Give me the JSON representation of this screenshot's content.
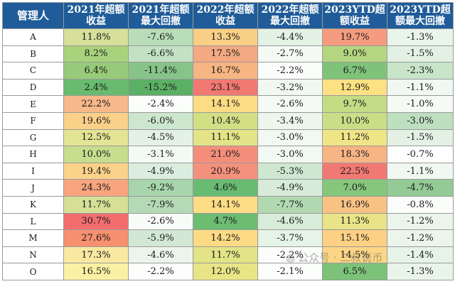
{
  "table": {
    "headers": [
      {
        "line1": "管理人",
        "line2": ""
      },
      {
        "line1": "2021年超额",
        "line2": "收益"
      },
      {
        "line1": "2021年超额",
        "line2": "最大回撤"
      },
      {
        "line1": "2022年超额",
        "line2": "收益"
      },
      {
        "line1": "2022年超额",
        "line2": "最大回撤"
      },
      {
        "line1": "2023YTD超",
        "line2": "额收益"
      },
      {
        "line1": "2023YTD超",
        "line2": "额最大回撤"
      }
    ],
    "rows": [
      {
        "manager": "A",
        "v": [
          "11.8%",
          "-7.6%",
          "13.3%",
          "-4.4%",
          "19.7%",
          "-1.3%"
        ]
      },
      {
        "manager": "B",
        "v": [
          "8.2%",
          "-6.6%",
          "17.5%",
          "-2.7%",
          "9.0%",
          "-1.5%"
        ]
      },
      {
        "manager": "C",
        "v": [
          "6.4%",
          "-11.4%",
          "16.7%",
          "-2.2%",
          "6.7%",
          "-2.3%"
        ]
      },
      {
        "manager": "D",
        "v": [
          "2.4%",
          "-15.2%",
          "23.1%",
          "-3.2%",
          "12.9%",
          "-1.1%"
        ]
      },
      {
        "manager": "E",
        "v": [
          "22.2%",
          "-2.4%",
          "14.1%",
          "-2.6%",
          "9.7%",
          "-1.0%"
        ]
      },
      {
        "manager": "F",
        "v": [
          "19.6%",
          "-6.0%",
          "10.4%",
          "-3.4%",
          "10.0%",
          "-3.0%"
        ]
      },
      {
        "manager": "G",
        "v": [
          "12.5%",
          "-4.5%",
          "11.1%",
          "-3.0%",
          "11.2%",
          "-1.5%"
        ]
      },
      {
        "manager": "H",
        "v": [
          "10.0%",
          "-3.1%",
          "21.0%",
          "-3.0%",
          "18.3%",
          "-0.7%"
        ]
      },
      {
        "manager": "I",
        "v": [
          "19.4%",
          "-4.9%",
          "20.9%",
          "-5.3%",
          "22.5%",
          "-1.1%"
        ]
      },
      {
        "manager": "J",
        "v": [
          "24.3%",
          "-9.2%",
          "4.6%",
          "-4.9%",
          "7.0%",
          "-4.7%"
        ]
      },
      {
        "manager": "K",
        "v": [
          "11.7%",
          "-7.9%",
          "14.1%",
          "-7.7%",
          "16.9%",
          "-0.8%"
        ]
      },
      {
        "manager": "L",
        "v": [
          "30.7%",
          "-2.6%",
          "4.7%",
          "-4.6%",
          "11.3%",
          "-1.2%"
        ]
      },
      {
        "manager": "M",
        "v": [
          "27.6%",
          "-5.9%",
          "14.2%",
          "-3.7%",
          "15.1%",
          "-1.2%"
        ]
      },
      {
        "manager": "N",
        "v": [
          "17.3%",
          "-4.6%",
          "11.7%",
          "-2.2%",
          "14.5%",
          "-1.4%"
        ]
      },
      {
        "manager": "O",
        "v": [
          "16.5%",
          "-2.2%",
          "12.0%",
          "-2.1%",
          "6.5%",
          "-1.3%"
        ]
      }
    ],
    "colors": [
      [
        "#d6e09a",
        "#b8ddb8",
        "#f9cf85",
        "#e4f1e5",
        "#f59b7f",
        "#e9f4ea"
      ],
      [
        "#a9d27c",
        "#c3e2c4",
        "#f3a981",
        "#f4f9f4",
        "#b5d681",
        "#e3f1e4"
      ],
      [
        "#98cb79",
        "#86c48a",
        "#f6b582",
        "#fbfdfb",
        "#7fc37a",
        "#c8e4c9"
      ],
      [
        "#69bb6f",
        "#5cb066",
        "#f27872",
        "#f1f8f2",
        "#fde182",
        "#f0f8f1"
      ],
      [
        "#f7b88a",
        "#fbfdfb",
        "#fcdc84",
        "#f5faf5",
        "#c3dc85",
        "#f5faf5"
      ],
      [
        "#fbd088",
        "#cde6ce",
        "#d2df85",
        "#ecf6ed",
        "#c9de87",
        "#bedfc0"
      ],
      [
        "#e4e495",
        "#e4f1e5",
        "#e2e487",
        "#f2f8f2",
        "#f0e586",
        "#e3f1e4"
      ],
      [
        "#c6de8e",
        "#f3f9f3",
        "#f48e7b",
        "#f2f8f2",
        "#f7b485",
        "#fdfefd"
      ],
      [
        "#fbd28a",
        "#dbedde",
        "#f4917c",
        "#cfe7d0",
        "#f27874",
        "#f0f8f1"
      ],
      [
        "#f8a57e",
        "#a8d5ab",
        "#69bb72",
        "#d7ebd8",
        "#87c67d",
        "#93ca95"
      ],
      [
        "#d5e096",
        "#b3dab5",
        "#fcdc84",
        "#b0d9b2",
        "#f8c284",
        "#fbfdfb"
      ],
      [
        "#f36d6f",
        "#f8fbf8",
        "#6cbc72",
        "#d9ecda",
        "#e8e487",
        "#ebf5eb"
      ],
      [
        "#f6906f",
        "#d3e8d4",
        "#fcdb84",
        "#e6f3e7",
        "#fdd084",
        "#ebf5eb"
      ],
      [
        "#f9e9a0",
        "#ecf5ec",
        "#e2e487",
        "#fbfdfb",
        "#fcd684",
        "#e6f3e7"
      ],
      [
        "#faf1a4",
        "#fcfefc",
        "#e8e587",
        "#fcfefc",
        "#7cc279",
        "#e9f4ea"
      ]
    ]
  },
  "watermark": {
    "text": "公众号 · 二叔说币",
    "icon": "wechat-icon"
  }
}
